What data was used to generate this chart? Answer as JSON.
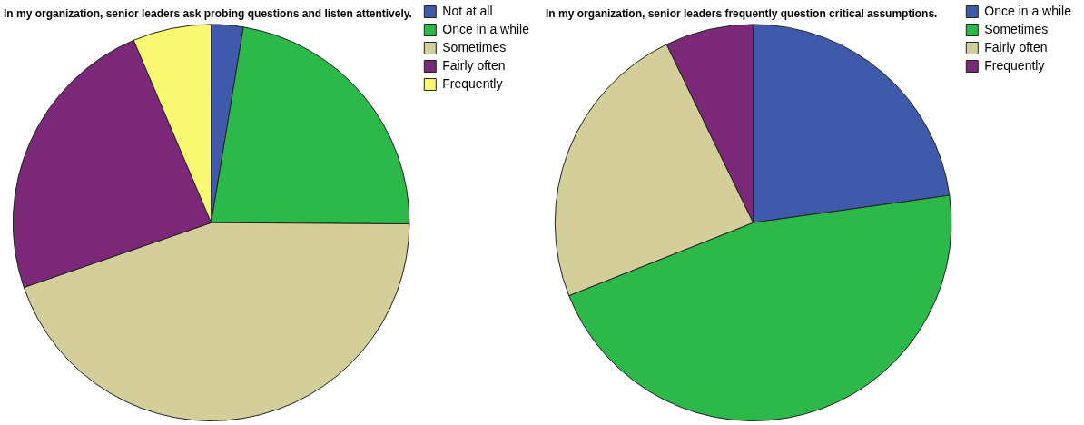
{
  "chart_data": [
    {
      "type": "pie",
      "title": "In my organization, senior leaders ask probing questions and listen attentively.",
      "categories": [
        "Not at all",
        "Once in a while",
        "Sometimes",
        "Fairly often",
        "Frequently"
      ],
      "values": [
        2.6,
        22.5,
        44.6,
        23.9,
        6.4
      ],
      "colors": [
        "#3f5aab",
        "#2db84a",
        "#d4cf9a",
        "#7b2878",
        "#f9f871"
      ],
      "legend": "top right"
    },
    {
      "type": "pie",
      "title": "In my organization, senior leaders frequently question critical assumptions.",
      "categories": [
        "Once in a while",
        "Sometimes",
        "Fairly often",
        "Frequently"
      ],
      "values": [
        22.8,
        46.2,
        23.8,
        7.2
      ],
      "colors": [
        "#3f5aab",
        "#2db84a",
        "#d4cf9a",
        "#7b2878"
      ],
      "legend": "top right"
    }
  ]
}
